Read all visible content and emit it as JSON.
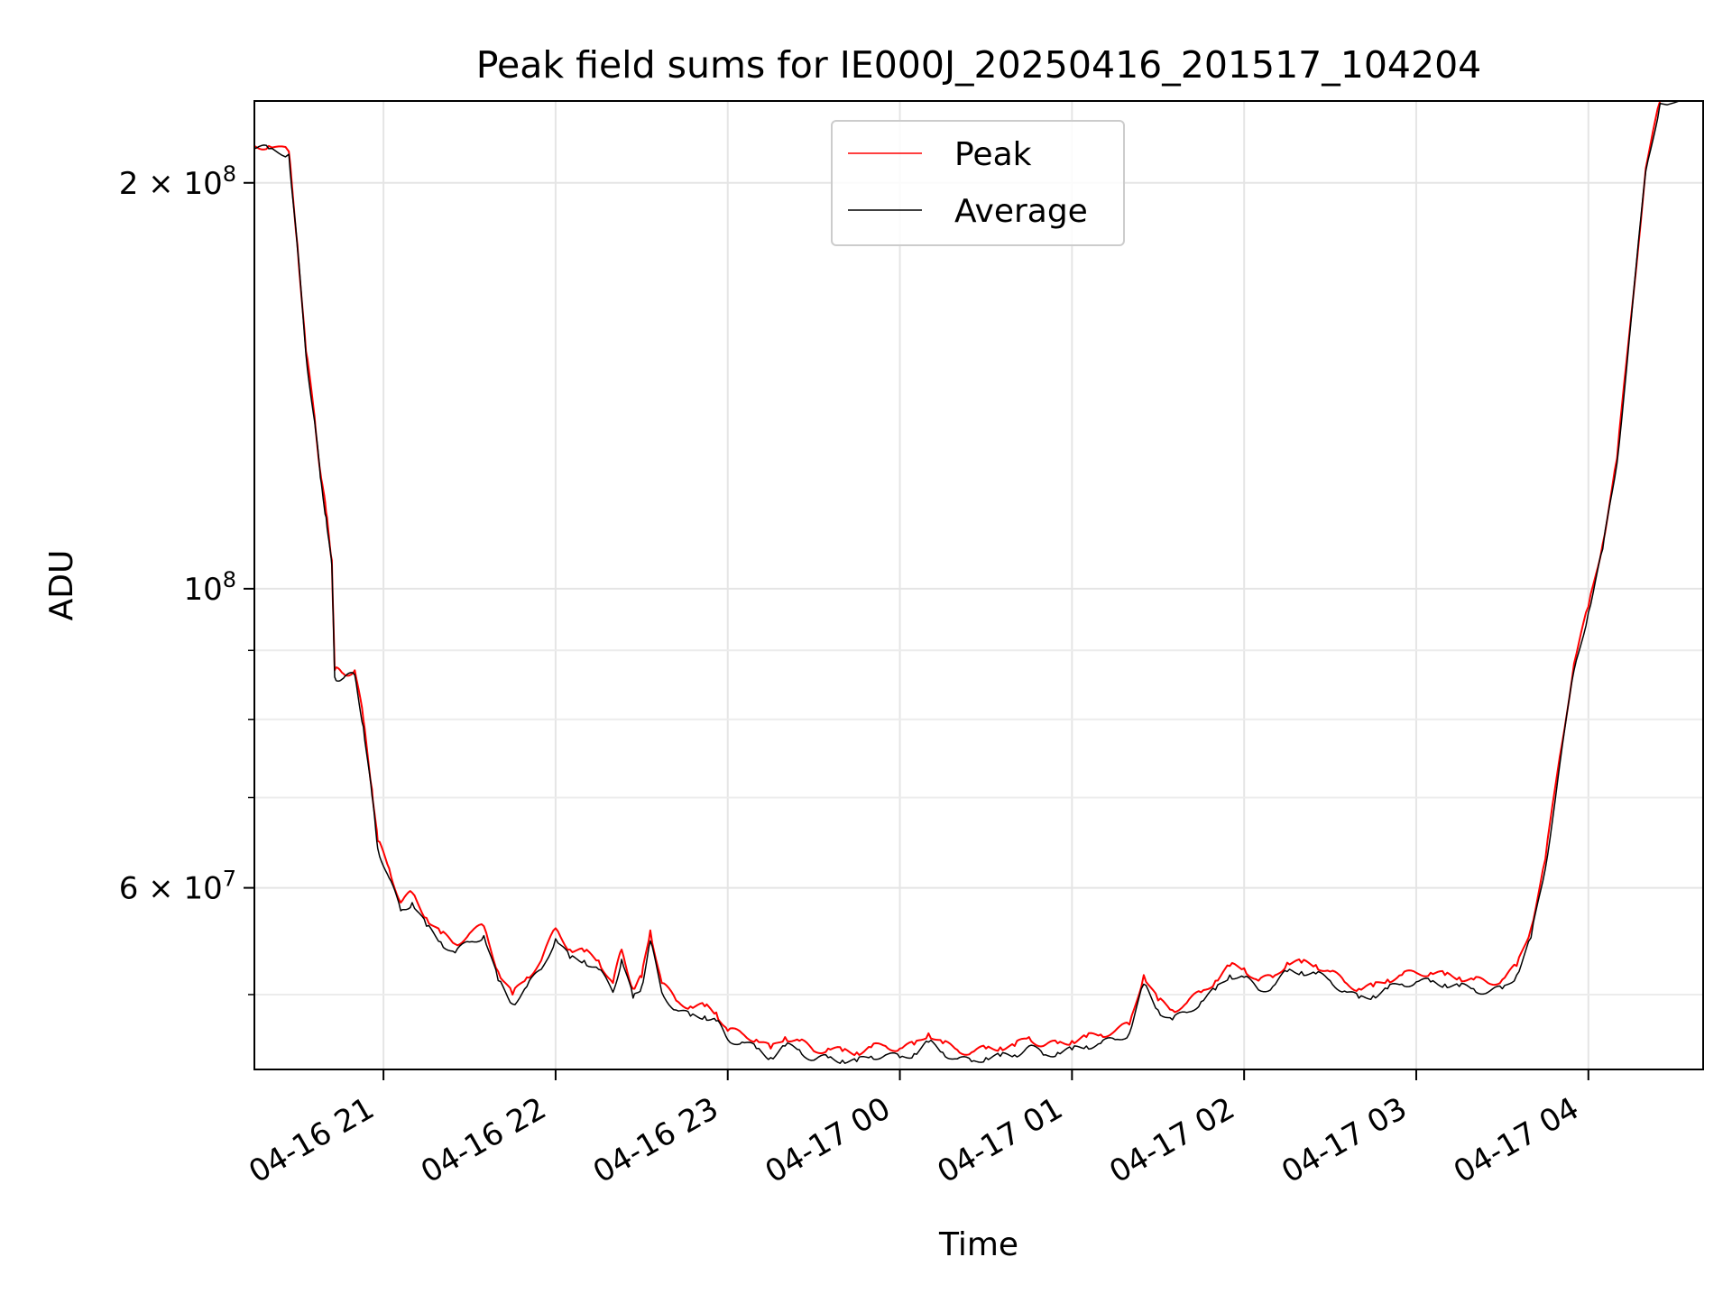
{
  "chart_data": {
    "type": "line",
    "title": "Peak field sums for IE000J_20250416_201517_104204",
    "xlabel": "Time",
    "ylabel": "ADU",
    "yscale": "log",
    "xlim": [
      "2025-04-16 20:15",
      "2025-04-17 04:40"
    ],
    "ylim": [
      44000000,
      230000000
    ],
    "grid": true,
    "legend": {
      "placement": "top-center"
    },
    "x_ticks": [
      {
        "label": "04-16 21",
        "value": "2025-04-16 21:00"
      },
      {
        "label": "04-16 22",
        "value": "2025-04-16 22:00"
      },
      {
        "label": "04-16 23",
        "value": "2025-04-16 23:00"
      },
      {
        "label": "04-17 00",
        "value": "2025-04-17 00:00"
      },
      {
        "label": "04-17 01",
        "value": "2025-04-17 01:00"
      },
      {
        "label": "04-17 02",
        "value": "2025-04-17 02:00"
      },
      {
        "label": "04-17 03",
        "value": "2025-04-17 03:00"
      },
      {
        "label": "04-17 04",
        "value": "2025-04-17 04:00"
      }
    ],
    "y_major_ticks": [
      {
        "value": 60000000,
        "base": "6 × 10",
        "exp": "7"
      },
      {
        "value": 100000000,
        "base": "10",
        "exp": "8"
      },
      {
        "value": 200000000,
        "base": "2 × 10",
        "exp": "8"
      }
    ],
    "y_minor_ticks": [
      50000000,
      70000000,
      80000000,
      90000000,
      300000000
    ],
    "series": [
      {
        "name": "Peak",
        "color": "#ff0000",
        "points": [
          [
            "2025-04-16 20:15",
            213000000
          ],
          [
            "2025-04-16 20:20",
            213000000
          ],
          [
            "2025-04-16 20:27",
            211000000
          ],
          [
            "2025-04-16 20:30",
            180000000
          ],
          [
            "2025-04-16 20:33",
            150000000
          ],
          [
            "2025-04-16 20:36",
            134000000
          ],
          [
            "2025-04-16 20:38",
            122000000
          ],
          [
            "2025-04-16 20:40",
            114000000
          ],
          [
            "2025-04-16 20:42",
            105000000
          ],
          [
            "2025-04-16 20:43",
            87000000
          ],
          [
            "2025-04-16 20:46",
            86500000
          ],
          [
            "2025-04-16 20:50",
            87000000
          ],
          [
            "2025-04-16 20:53",
            80000000
          ],
          [
            "2025-04-16 20:56",
            71000000
          ],
          [
            "2025-04-16 20:58",
            65000000
          ],
          [
            "2025-04-16 21:02",
            62000000
          ],
          [
            "2025-04-16 21:06",
            58500000
          ],
          [
            "2025-04-16 21:10",
            59500000
          ],
          [
            "2025-04-16 21:15",
            57000000
          ],
          [
            "2025-04-16 21:20",
            55500000
          ],
          [
            "2025-04-16 21:25",
            54500000
          ],
          [
            "2025-04-16 21:30",
            55500000
          ],
          [
            "2025-04-16 21:35",
            56200000
          ],
          [
            "2025-04-16 21:40",
            52000000
          ],
          [
            "2025-04-16 21:45",
            50000000
          ],
          [
            "2025-04-16 21:50",
            51500000
          ],
          [
            "2025-04-16 21:55",
            53000000
          ],
          [
            "2025-04-16 22:00",
            56000000
          ],
          [
            "2025-04-16 22:05",
            54000000
          ],
          [
            "2025-04-16 22:10",
            53800000
          ],
          [
            "2025-04-16 22:15",
            53000000
          ],
          [
            "2025-04-16 22:20",
            51000000
          ],
          [
            "2025-04-16 22:23",
            54000000
          ],
          [
            "2025-04-16 22:27",
            50500000
          ],
          [
            "2025-04-16 22:30",
            51500000
          ],
          [
            "2025-04-16 22:33",
            55800000
          ],
          [
            "2025-04-16 22:37",
            51000000
          ],
          [
            "2025-04-16 22:42",
            49500000
          ],
          [
            "2025-04-16 22:47",
            49000000
          ],
          [
            "2025-04-16 22:52",
            49000000
          ],
          [
            "2025-04-16 22:56",
            48500000
          ],
          [
            "2025-04-16 23:00",
            47000000
          ],
          [
            "2025-04-16 23:05",
            46800000
          ],
          [
            "2025-04-16 23:10",
            46300000
          ],
          [
            "2025-04-16 23:15",
            45600000
          ],
          [
            "2025-04-16 23:20",
            46500000
          ],
          [
            "2025-04-16 23:25",
            46200000
          ],
          [
            "2025-04-16 23:30",
            45400000
          ],
          [
            "2025-04-16 23:35",
            45600000
          ],
          [
            "2025-04-16 23:40",
            45400000
          ],
          [
            "2025-04-16 23:45",
            45300000
          ],
          [
            "2025-04-16 23:50",
            45700000
          ],
          [
            "2025-04-16 23:55",
            45800000
          ],
          [
            "2025-04-17 00:00",
            45600000
          ],
          [
            "2025-04-17 00:05",
            45900000
          ],
          [
            "2025-04-17 00:10",
            46800000
          ],
          [
            "2025-04-17 00:15",
            46000000
          ],
          [
            "2025-04-17 00:20",
            45500000
          ],
          [
            "2025-04-17 00:25",
            45300000
          ],
          [
            "2025-04-17 00:30",
            45600000
          ],
          [
            "2025-04-17 00:35",
            45700000
          ],
          [
            "2025-04-17 00:40",
            45800000
          ],
          [
            "2025-04-17 00:45",
            46500000
          ],
          [
            "2025-04-17 00:50",
            45800000
          ],
          [
            "2025-04-17 00:55",
            46000000
          ],
          [
            "2025-04-17 01:00",
            46200000
          ],
          [
            "2025-04-17 01:05",
            46500000
          ],
          [
            "2025-04-17 01:10",
            46700000
          ],
          [
            "2025-04-17 01:15",
            47000000
          ],
          [
            "2025-04-17 01:20",
            47500000
          ],
          [
            "2025-04-17 01:25",
            51700000
          ],
          [
            "2025-04-17 01:30",
            49500000
          ],
          [
            "2025-04-17 01:35",
            48700000
          ],
          [
            "2025-04-17 01:40",
            49300000
          ],
          [
            "2025-04-17 01:45",
            50200000
          ],
          [
            "2025-04-17 01:50",
            51200000
          ],
          [
            "2025-04-17 01:55",
            52500000
          ],
          [
            "2025-04-17 02:00",
            52300000
          ],
          [
            "2025-04-17 02:05",
            51200000
          ],
          [
            "2025-04-17 02:10",
            51500000
          ],
          [
            "2025-04-17 02:15",
            52800000
          ],
          [
            "2025-04-17 02:20",
            52800000
          ],
          [
            "2025-04-17 02:25",
            52600000
          ],
          [
            "2025-04-17 02:30",
            52000000
          ],
          [
            "2025-04-17 02:35",
            51100000
          ],
          [
            "2025-04-17 02:40",
            50500000
          ],
          [
            "2025-04-17 02:45",
            50700000
          ],
          [
            "2025-04-17 02:50",
            51300000
          ],
          [
            "2025-04-17 02:55",
            51700000
          ],
          [
            "2025-04-17 03:00",
            51900000
          ],
          [
            "2025-04-17 03:05",
            51900000
          ],
          [
            "2025-04-17 03:10",
            51700000
          ],
          [
            "2025-04-17 03:15",
            51500000
          ],
          [
            "2025-04-17 03:20",
            51300000
          ],
          [
            "2025-04-17 03:25",
            51000000
          ],
          [
            "2025-04-17 03:30",
            51300000
          ],
          [
            "2025-04-17 03:35",
            52500000
          ],
          [
            "2025-04-17 03:40",
            56000000
          ],
          [
            "2025-04-17 03:45",
            63000000
          ],
          [
            "2025-04-17 03:50",
            75000000
          ],
          [
            "2025-04-17 03:55",
            88000000
          ],
          [
            "2025-04-17 04:00",
            97000000
          ],
          [
            "2025-04-17 04:05",
            108000000
          ],
          [
            "2025-04-17 04:10",
            125000000
          ],
          [
            "2025-04-17 04:15",
            160000000
          ],
          [
            "2025-04-17 04:20",
            205000000
          ],
          [
            "2025-04-17 04:25",
            230000000
          ],
          [
            "2025-04-17 04:40",
            232000000
          ]
        ]
      },
      {
        "name": "Average",
        "color": "#000000",
        "points": [
          [
            "2025-04-16 20:15",
            212000000
          ],
          [
            "2025-04-16 20:20",
            212000000
          ],
          [
            "2025-04-16 20:27",
            210000000
          ],
          [
            "2025-04-16 20:30",
            179000000
          ],
          [
            "2025-04-16 20:33",
            149000000
          ],
          [
            "2025-04-16 20:36",
            133000000
          ],
          [
            "2025-04-16 20:38",
            121000000
          ],
          [
            "2025-04-16 20:40",
            113000000
          ],
          [
            "2025-04-16 20:42",
            104000000
          ],
          [
            "2025-04-16 20:43",
            86000000
          ],
          [
            "2025-04-16 20:46",
            85800000
          ],
          [
            "2025-04-16 20:50",
            86300000
          ],
          [
            "2025-04-16 20:53",
            79000000
          ],
          [
            "2025-04-16 20:56",
            70200000
          ],
          [
            "2025-04-16 20:58",
            64200000
          ],
          [
            "2025-04-16 21:02",
            61000000
          ],
          [
            "2025-04-16 21:06",
            57700000
          ],
          [
            "2025-04-16 21:10",
            58500000
          ],
          [
            "2025-04-16 21:15",
            56200000
          ],
          [
            "2025-04-16 21:20",
            54700000
          ],
          [
            "2025-04-16 21:25",
            53700000
          ],
          [
            "2025-04-16 21:30",
            54700000
          ],
          [
            "2025-04-16 21:35",
            55300000
          ],
          [
            "2025-04-16 21:40",
            51200000
          ],
          [
            "2025-04-16 21:45",
            49200000
          ],
          [
            "2025-04-16 21:50",
            50700000
          ],
          [
            "2025-04-16 21:55",
            52200000
          ],
          [
            "2025-04-16 22:00",
            55000000
          ],
          [
            "2025-04-16 22:05",
            53200000
          ],
          [
            "2025-04-16 22:10",
            53000000
          ],
          [
            "2025-04-16 22:15",
            52200000
          ],
          [
            "2025-04-16 22:20",
            50200000
          ],
          [
            "2025-04-16 22:23",
            53100000
          ],
          [
            "2025-04-16 22:27",
            49700000
          ],
          [
            "2025-04-16 22:30",
            50700000
          ],
          [
            "2025-04-16 22:33",
            54800000
          ],
          [
            "2025-04-16 22:37",
            50200000
          ],
          [
            "2025-04-16 22:42",
            48700000
          ],
          [
            "2025-04-16 22:47",
            48200000
          ],
          [
            "2025-04-16 22:52",
            48200000
          ],
          [
            "2025-04-16 22:56",
            47800000
          ],
          [
            "2025-04-16 23:00",
            46300000
          ],
          [
            "2025-04-16 23:05",
            46100000
          ],
          [
            "2025-04-16 23:10",
            45600000
          ],
          [
            "2025-04-16 23:15",
            44900000
          ],
          [
            "2025-04-16 23:20",
            45800000
          ],
          [
            "2025-04-16 23:25",
            45500000
          ],
          [
            "2025-04-16 23:30",
            44700000
          ],
          [
            "2025-04-16 23:35",
            44900000
          ],
          [
            "2025-04-16 23:40",
            44700000
          ],
          [
            "2025-04-16 23:45",
            44600000
          ],
          [
            "2025-04-16 23:50",
            45000000
          ],
          [
            "2025-04-16 23:55",
            45100000
          ],
          [
            "2025-04-17 00:00",
            44900000
          ],
          [
            "2025-04-17 00:05",
            45200000
          ],
          [
            "2025-04-17 00:10",
            46100000
          ],
          [
            "2025-04-17 00:15",
            45300000
          ],
          [
            "2025-04-17 00:20",
            44800000
          ],
          [
            "2025-04-17 00:25",
            44600000
          ],
          [
            "2025-04-17 00:30",
            44900000
          ],
          [
            "2025-04-17 00:35",
            45000000
          ],
          [
            "2025-04-17 00:40",
            45100000
          ],
          [
            "2025-04-17 00:45",
            45800000
          ],
          [
            "2025-04-17 00:50",
            45100000
          ],
          [
            "2025-04-17 00:55",
            45300000
          ],
          [
            "2025-04-17 01:00",
            45500000
          ],
          [
            "2025-04-17 01:05",
            45800000
          ],
          [
            "2025-04-17 01:10",
            46000000
          ],
          [
            "2025-04-17 01:15",
            46300000
          ],
          [
            "2025-04-17 01:20",
            46800000
          ],
          [
            "2025-04-17 01:25",
            50900000
          ],
          [
            "2025-04-17 01:30",
            48700000
          ],
          [
            "2025-04-17 01:35",
            47900000
          ],
          [
            "2025-04-17 01:40",
            48500000
          ],
          [
            "2025-04-17 01:45",
            49400000
          ],
          [
            "2025-04-17 01:50",
            50400000
          ],
          [
            "2025-04-17 01:55",
            51700000
          ],
          [
            "2025-04-17 02:00",
            51500000
          ],
          [
            "2025-04-17 02:05",
            50400000
          ],
          [
            "2025-04-17 02:10",
            50700000
          ],
          [
            "2025-04-17 02:15",
            52000000
          ],
          [
            "2025-04-17 02:20",
            52000000
          ],
          [
            "2025-04-17 02:25",
            51800000
          ],
          [
            "2025-04-17 02:30",
            51200000
          ],
          [
            "2025-04-17 02:35",
            50300000
          ],
          [
            "2025-04-17 02:40",
            49700000
          ],
          [
            "2025-04-17 02:45",
            49900000
          ],
          [
            "2025-04-17 02:50",
            50500000
          ],
          [
            "2025-04-17 02:55",
            50900000
          ],
          [
            "2025-04-17 03:00",
            51100000
          ],
          [
            "2025-04-17 03:05",
            51100000
          ],
          [
            "2025-04-17 03:10",
            50900000
          ],
          [
            "2025-04-17 03:15",
            50700000
          ],
          [
            "2025-04-17 03:20",
            50500000
          ],
          [
            "2025-04-17 03:25",
            50200000
          ],
          [
            "2025-04-17 03:30",
            50500000
          ],
          [
            "2025-04-17 03:35",
            51700000
          ],
          [
            "2025-04-17 03:40",
            55100000
          ],
          [
            "2025-04-17 03:45",
            62000000
          ],
          [
            "2025-04-17 03:50",
            74000000
          ],
          [
            "2025-04-17 03:55",
            87000000
          ],
          [
            "2025-04-17 04:00",
            96000000
          ],
          [
            "2025-04-17 04:05",
            107000000
          ],
          [
            "2025-04-17 04:10",
            124000000
          ],
          [
            "2025-04-17 04:15",
            159000000
          ],
          [
            "2025-04-17 04:20",
            204000000
          ],
          [
            "2025-04-17 04:25",
            229000000
          ],
          [
            "2025-04-17 04:40",
            231000000
          ]
        ]
      }
    ]
  }
}
